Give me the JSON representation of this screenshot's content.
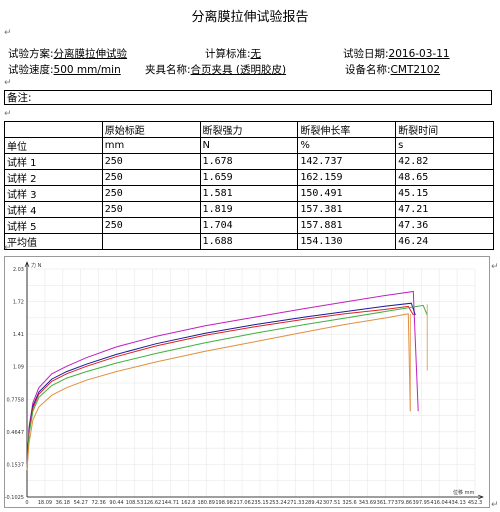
{
  "doc": {
    "title": "分离膜拉伸试验报告",
    "return_mark": "↵"
  },
  "info": {
    "scheme_label": "试验方案:",
    "scheme_value": "分离膜拉伸试验",
    "standard_label": "计算标准:",
    "standard_value": "无",
    "date_label": "试验日期:",
    "date_value": "2016-03-11",
    "speed_label": "试验速度:",
    "speed_value": "500 mm/min",
    "fixture_label": "夹具名称:",
    "fixture_value": "合页夹具 (透明胶皮)",
    "device_label": "设备名称:",
    "device_value": "CMT2102"
  },
  "remarks": {
    "label": "备注:"
  },
  "table": {
    "headers": [
      "",
      "原始标距",
      "断裂强力",
      "断裂伸长率",
      "断裂时间"
    ],
    "units_row": [
      "单位",
      "mm",
      "N",
      "%",
      "s"
    ],
    "rows": [
      [
        "试样 1",
        "250",
        "1.678",
        "142.737",
        "42.82"
      ],
      [
        "试样 2",
        "250",
        "1.659",
        "162.159",
        "48.65"
      ],
      [
        "试样 3",
        "250",
        "1.581",
        "150.491",
        "45.15"
      ],
      [
        "试样 4",
        "250",
        "1.819",
        "157.381",
        "47.21"
      ],
      [
        "试样 5",
        "250",
        "1.704",
        "157.881",
        "47.36"
      ],
      [
        "平均值",
        "",
        "1.688",
        "154.130",
        "46.24"
      ]
    ]
  },
  "chart_data": {
    "type": "line",
    "ylabel": "力 N",
    "xlabel": "位移 mm",
    "ylim": [
      -0.1025,
      2.03
    ],
    "xlim": [
      0,
      452.3
    ],
    "y_ticks": [
      "2.03",
      "1.72",
      "1.41",
      "1.09",
      "0.7758",
      "0.4647",
      "0.1537",
      "-0.1025"
    ],
    "x_ticks": [
      "0",
      "18.09",
      "36.18",
      "54.27",
      "72.36",
      "90.44",
      "108.53",
      "126.62",
      "144.71",
      "162.8",
      "180.89",
      "198.98",
      "217.06",
      "235.15",
      "253.24",
      "271.33",
      "289.42",
      "307.51",
      "325.6",
      "343.69",
      "361.77",
      "379.86",
      "397.95",
      "416.04",
      "434.13",
      "452.3"
    ],
    "grid": true,
    "series": [
      {
        "color": "#c020c0",
        "x": [
          0,
          2,
          6,
          12,
          25,
          40,
          60,
          90,
          130,
          180,
          230,
          280,
          320,
          360,
          390,
          395
        ],
        "y": [
          0.15,
          0.55,
          0.78,
          0.92,
          1.05,
          1.12,
          1.2,
          1.3,
          1.4,
          1.5,
          1.58,
          1.66,
          1.72,
          1.78,
          1.82,
          0.7
        ]
      },
      {
        "color": "#1a1a9a",
        "x": [
          0,
          2,
          6,
          12,
          25,
          40,
          60,
          90,
          130,
          180,
          230,
          280,
          320,
          360,
          388,
          392
        ],
        "y": [
          0.15,
          0.52,
          0.75,
          0.88,
          1.0,
          1.07,
          1.14,
          1.23,
          1.33,
          1.43,
          1.51,
          1.58,
          1.63,
          1.68,
          1.71,
          1.6
        ]
      },
      {
        "color": "#e02020",
        "x": [
          0,
          2,
          6,
          12,
          25,
          40,
          60,
          90,
          130,
          180,
          230,
          280,
          320,
          360,
          385,
          390
        ],
        "y": [
          0.15,
          0.5,
          0.73,
          0.86,
          0.98,
          1.05,
          1.12,
          1.21,
          1.31,
          1.41,
          1.49,
          1.56,
          1.61,
          1.65,
          1.68,
          1.6
        ]
      },
      {
        "color": "#40b040",
        "x": [
          0,
          2,
          6,
          12,
          25,
          40,
          60,
          90,
          130,
          180,
          230,
          280,
          320,
          360,
          400,
          404
        ],
        "y": [
          0.15,
          0.48,
          0.7,
          0.83,
          0.94,
          1.01,
          1.07,
          1.15,
          1.24,
          1.34,
          1.43,
          1.51,
          1.57,
          1.63,
          1.69,
          1.6
        ]
      },
      {
        "color": "#e09040",
        "x": [
          0,
          2,
          6,
          12,
          25,
          40,
          60,
          90,
          130,
          180,
          230,
          280,
          320,
          360,
          385,
          387
        ],
        "y": [
          0.15,
          0.4,
          0.62,
          0.74,
          0.85,
          0.92,
          0.99,
          1.07,
          1.16,
          1.26,
          1.35,
          1.44,
          1.51,
          1.57,
          1.61,
          0.7
        ]
      }
    ],
    "tails": [
      {
        "color": "#e09040",
        "x": [
          387,
          387
        ],
        "y": [
          1.61,
          0.7
        ]
      },
      {
        "color": "#e09040",
        "x": [
          404,
          404
        ],
        "y": [
          1.7,
          1.08
        ]
      }
    ]
  }
}
